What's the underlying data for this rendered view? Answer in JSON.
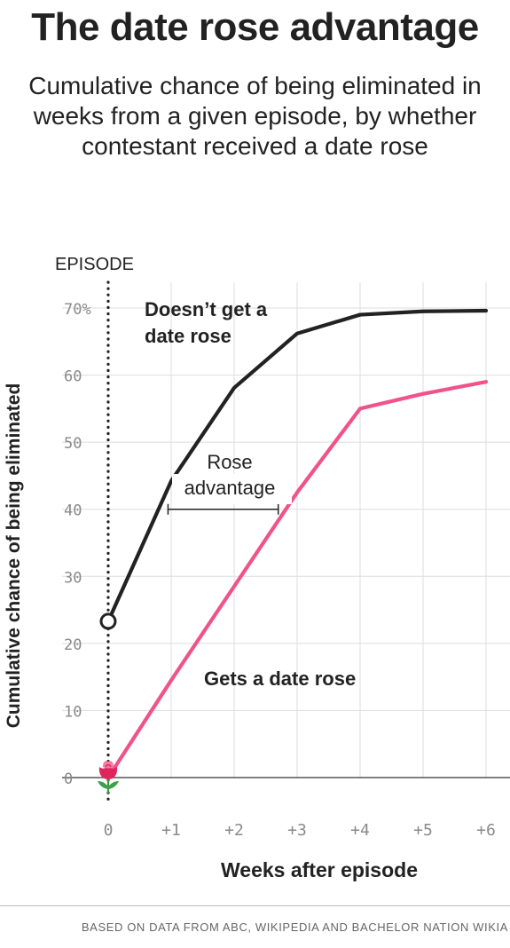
{
  "title": "The date rose advantage",
  "subtitle": "Cumulative chance of being eliminated in weeks from a given episode, by whether contestant received a date rose",
  "source": "BASED ON DATA FROM ABC, WIKIPEDIA AND BACHELOR NATION WIKIA",
  "chart_data": {
    "type": "line",
    "xlabel": "Weeks after episode",
    "ylabel": "Cumulative chance of being eliminated",
    "x": [
      0,
      1,
      2,
      3,
      4,
      5,
      6
    ],
    "x_tick_labels": [
      "0",
      "+1",
      "+2",
      "+3",
      "+4",
      "+5",
      "+6"
    ],
    "y_tick_values": [
      0,
      10,
      20,
      30,
      40,
      50,
      60,
      70
    ],
    "y_tick_labels": [
      "0",
      "10",
      "20",
      "30",
      "40",
      "50",
      "60",
      "70%"
    ],
    "xlim": [
      0,
      6
    ],
    "ylim": [
      0,
      70
    ],
    "grid": true,
    "episode_marker_label": "EPISODE",
    "series": [
      {
        "name": "Doesn’t get a date rose",
        "color": "#222222",
        "values": [
          23.3,
          44.2,
          58.1,
          66.2,
          69.0,
          69.5,
          69.6
        ]
      },
      {
        "name": "Gets a date rose",
        "color": "#f0528a",
        "values": [
          0,
          14.5,
          28.5,
          42.5,
          55.0,
          57.2,
          59.0
        ]
      }
    ],
    "annotations": [
      {
        "label": "Rose advantage",
        "y": 40,
        "x_start": 0.95,
        "x_end": 2.7
      }
    ],
    "icons": [
      "rose-icon"
    ]
  }
}
